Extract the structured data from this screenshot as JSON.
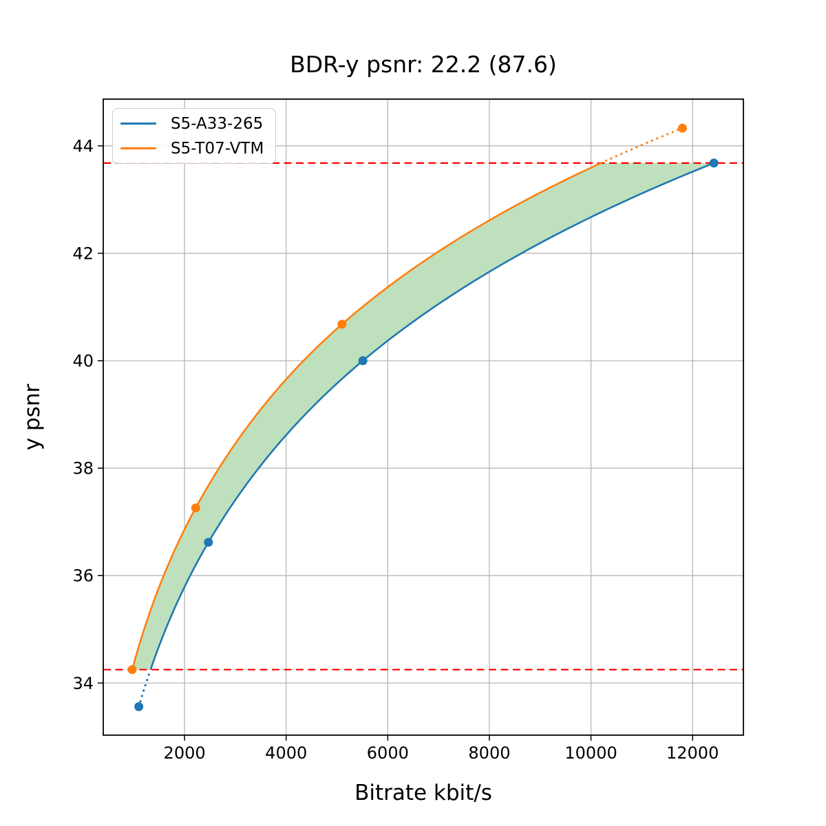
{
  "chart_data": {
    "type": "line",
    "title": "BDR-y psnr: 22.2 (87.6)",
    "xlabel": "Bitrate kbit/s",
    "ylabel": "y psnr",
    "xlim": [
      400,
      13000
    ],
    "ylim": [
      33.03,
      44.87
    ],
    "xticks": [
      2000,
      4000,
      6000,
      8000,
      10000,
      12000
    ],
    "yticks": [
      34,
      36,
      38,
      40,
      42,
      44
    ],
    "grid": true,
    "legend_position": "upper-left",
    "series": [
      {
        "name": "S5-A33-265",
        "color": "#1f77b4",
        "x": [
          1100,
          2470,
          5510,
          12420
        ],
        "y": [
          33.56,
          36.62,
          40.0,
          43.68
        ],
        "dotted_end": "start"
      },
      {
        "name": "S5-T07-VTM",
        "color": "#ff7f0e",
        "x": [
          970,
          2220,
          5100,
          11800
        ],
        "y": [
          34.25,
          37.26,
          40.68,
          44.33
        ],
        "dotted_end": "end"
      }
    ],
    "overlap_band": {
      "y_low": 34.25,
      "y_high": 43.68,
      "fill_color": "#bee0bd"
    },
    "hlines": {
      "values": [
        34.25,
        43.68
      ],
      "color": "#ff0000",
      "style": "dashed"
    },
    "colors": {
      "grid": "#b0b0b0",
      "spine": "#000000",
      "text": "#000000",
      "legend_border": "#cccccc"
    }
  }
}
